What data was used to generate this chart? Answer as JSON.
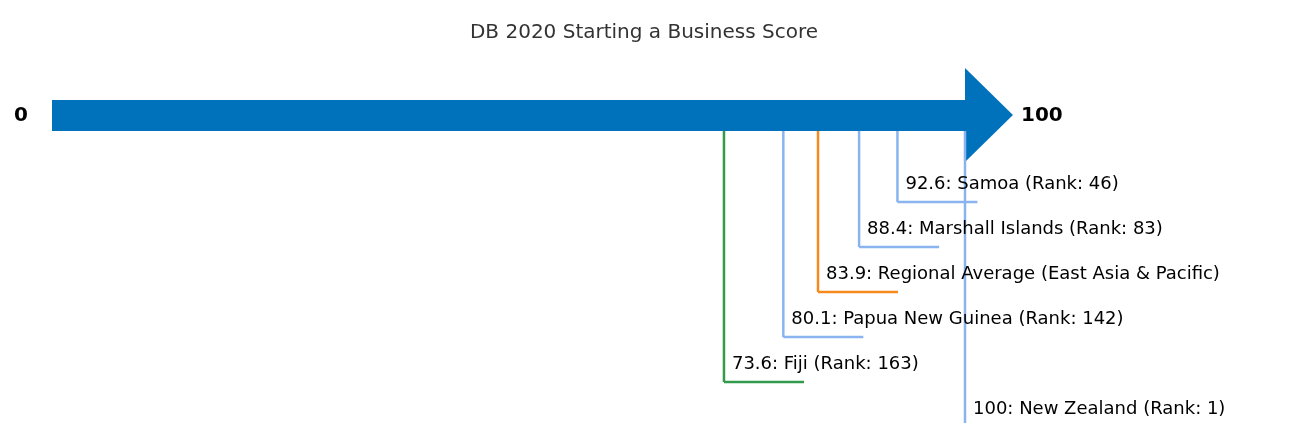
{
  "chart_data": {
    "type": "other",
    "title": "DB 2020 Starting a Business Score",
    "categories": [
      "Samoa (Rank: 46)",
      "Marshall Islands (Rank: 83)",
      "Regional Average (East Asia & Pacific)",
      "Papua New Guinea (Rank: 142)",
      "Fiji (Rank: 163)",
      "New Zealand (Rank: 1)"
    ],
    "values": [
      92.6,
      88.4,
      83.9,
      80.1,
      73.6,
      100
    ],
    "colors": [
      "#8ab4f0",
      "#8ab4f0",
      "#f58a1f",
      "#8ab4f0",
      "#339a4c",
      "#8ab4f0"
    ],
    "value_labels": [
      "92.6:",
      "88.4:",
      "83.9:",
      "80.1:",
      "73.6:",
      "100:"
    ],
    "annotations": [
      "0",
      "100"
    ]
  }
}
